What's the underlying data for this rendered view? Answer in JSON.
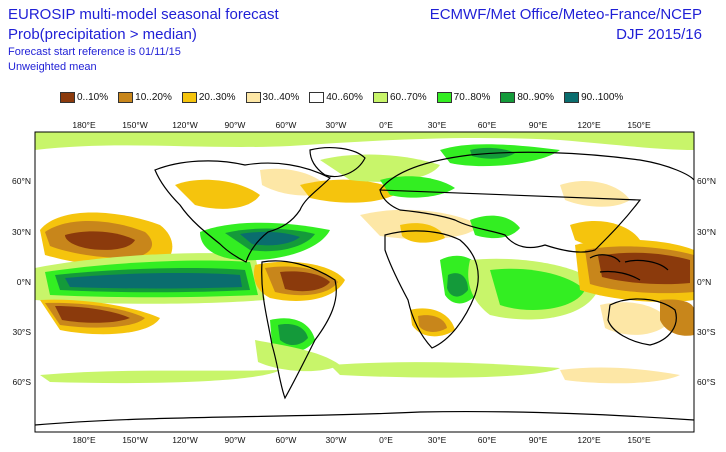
{
  "header": {
    "title_line1": "EUROSIP multi-model seasonal forecast",
    "title_line2": "Prob(precipitation > median)",
    "subtitle_line1": "Forecast start reference is 01/11/15",
    "subtitle_line2": "Unweighted mean",
    "centres": "ECMWF/Met Office/Meteo-France/NCEP",
    "period": "DJF 2015/16"
  },
  "legend": [
    {
      "label": "0..10%",
      "color": "#8b3a0c"
    },
    {
      "label": "10..20%",
      "color": "#c8861b"
    },
    {
      "label": "20..30%",
      "color": "#f5c40d"
    },
    {
      "label": "30..40%",
      "color": "#fde7a6"
    },
    {
      "label": "40..60%",
      "color": "#ffffff"
    },
    {
      "label": "60..70%",
      "color": "#c8f56a"
    },
    {
      "label": "70..80%",
      "color": "#33ee22"
    },
    {
      "label": "80..90%",
      "color": "#149a3a"
    },
    {
      "label": "90..100%",
      "color": "#0a6d6e"
    }
  ],
  "axes": {
    "lon_top": [
      "180°E",
      "150°W",
      "120°W",
      "90°W",
      "60°W",
      "30°W",
      "0°E",
      "30°E",
      "60°E",
      "90°E",
      "120°E",
      "150°E"
    ],
    "lon_bottom": [
      "180°E",
      "150°W",
      "120°W",
      "90°W",
      "60°W",
      "30°W",
      "0°E",
      "30°E",
      "60°E",
      "90°E",
      "120°E",
      "150°E"
    ],
    "lat_left": [
      "60°N",
      "30°N",
      "0°N",
      "30°S",
      "60°S"
    ],
    "lat_right": [
      "60°N",
      "30°N",
      "0°N",
      "30°S",
      "60°S"
    ]
  }
}
